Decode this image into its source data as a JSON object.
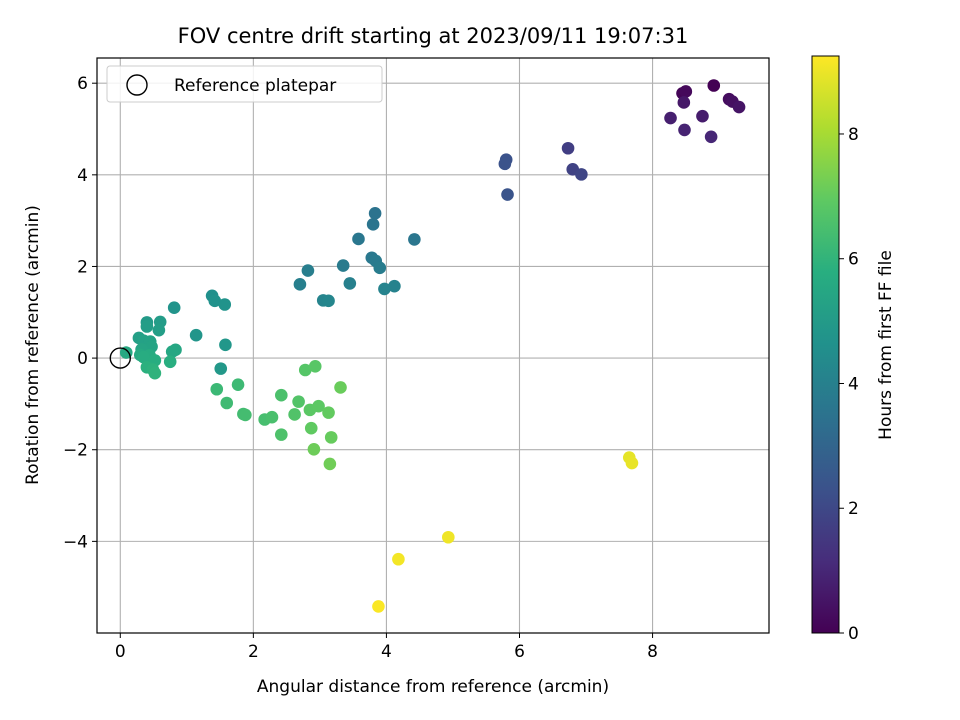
{
  "chart_data": {
    "type": "scatter",
    "title": "FOV centre drift starting at 2023/09/11 19:07:31",
    "xlabel": "Angular distance from reference (arcmin)",
    "ylabel": "Rotation from reference (arcmin)",
    "xlim": [
      -0.35,
      9.75
    ],
    "ylim": [
      -6.0,
      6.55
    ],
    "xticks": [
      "0",
      "2",
      "4",
      "6",
      "8"
    ],
    "yticks": [
      "−4",
      "−2",
      "0",
      "2",
      "4",
      "6"
    ],
    "grid": true,
    "legend": {
      "placement": "top-left",
      "entries": [
        "Reference platepar"
      ]
    },
    "reference": {
      "x": 0.0,
      "y": 0.0
    },
    "colorbar": {
      "label": "Hours from first FF file",
      "range": [
        0,
        9.25
      ],
      "ticks": [
        "0",
        "2",
        "4",
        "6",
        "8"
      ],
      "colormap": "viridis"
    },
    "points": [
      {
        "x": 8.92,
        "y": 5.95,
        "h": 0.0
      },
      {
        "x": 8.45,
        "y": 5.78,
        "h": 0.1
      },
      {
        "x": 8.5,
        "y": 5.82,
        "h": 0.2
      },
      {
        "x": 9.15,
        "y": 5.65,
        "h": 0.3
      },
      {
        "x": 9.2,
        "y": 5.6,
        "h": 0.4
      },
      {
        "x": 9.3,
        "y": 5.48,
        "h": 0.5
      },
      {
        "x": 8.47,
        "y": 5.58,
        "h": 0.6
      },
      {
        "x": 8.75,
        "y": 5.28,
        "h": 0.7
      },
      {
        "x": 8.27,
        "y": 5.24,
        "h": 0.8
      },
      {
        "x": 8.48,
        "y": 4.98,
        "h": 0.9
      },
      {
        "x": 8.88,
        "y": 4.83,
        "h": 1.0
      },
      {
        "x": 6.73,
        "y": 4.58,
        "h": 1.7
      },
      {
        "x": 6.8,
        "y": 4.12,
        "h": 1.8
      },
      {
        "x": 6.93,
        "y": 4.01,
        "h": 1.9
      },
      {
        "x": 5.8,
        "y": 4.33,
        "h": 2.3
      },
      {
        "x": 5.78,
        "y": 4.24,
        "h": 2.35
      },
      {
        "x": 5.82,
        "y": 3.57,
        "h": 2.4
      },
      {
        "x": 3.83,
        "y": 3.16,
        "h": 3.5
      },
      {
        "x": 3.8,
        "y": 2.92,
        "h": 3.55
      },
      {
        "x": 4.42,
        "y": 2.59,
        "h": 3.6
      },
      {
        "x": 3.58,
        "y": 2.6,
        "h": 3.65
      },
      {
        "x": 3.78,
        "y": 2.19,
        "h": 3.7
      },
      {
        "x": 3.84,
        "y": 2.12,
        "h": 3.75
      },
      {
        "x": 3.35,
        "y": 2.02,
        "h": 3.8
      },
      {
        "x": 3.9,
        "y": 1.97,
        "h": 3.85
      },
      {
        "x": 2.82,
        "y": 1.91,
        "h": 3.9
      },
      {
        "x": 2.7,
        "y": 1.61,
        "h": 3.95
      },
      {
        "x": 3.45,
        "y": 1.63,
        "h": 4.0
      },
      {
        "x": 4.12,
        "y": 1.57,
        "h": 4.05
      },
      {
        "x": 3.97,
        "y": 1.51,
        "h": 4.1
      },
      {
        "x": 3.05,
        "y": 1.26,
        "h": 4.15
      },
      {
        "x": 3.13,
        "y": 1.25,
        "h": 4.2
      },
      {
        "x": 1.38,
        "y": 1.36,
        "h": 4.6
      },
      {
        "x": 1.42,
        "y": 1.25,
        "h": 4.65
      },
      {
        "x": 1.57,
        "y": 1.17,
        "h": 4.7
      },
      {
        "x": 0.81,
        "y": 1.1,
        "h": 4.75
      },
      {
        "x": 1.14,
        "y": 0.5,
        "h": 4.8
      },
      {
        "x": 1.58,
        "y": 0.29,
        "h": 4.85
      },
      {
        "x": 1.51,
        "y": -0.23,
        "h": 4.9
      },
      {
        "x": 0.4,
        "y": 0.78,
        "h": 5.0
      },
      {
        "x": 0.6,
        "y": 0.79,
        "h": 5.05
      },
      {
        "x": 0.4,
        "y": 0.69,
        "h": 5.1
      },
      {
        "x": 0.58,
        "y": 0.61,
        "h": 5.15
      },
      {
        "x": 0.28,
        "y": 0.44,
        "h": 5.2
      },
      {
        "x": 0.35,
        "y": 0.38,
        "h": 5.25
      },
      {
        "x": 0.45,
        "y": 0.36,
        "h": 5.3
      },
      {
        "x": 0.47,
        "y": 0.25,
        "h": 5.35
      },
      {
        "x": 0.32,
        "y": 0.19,
        "h": 5.4
      },
      {
        "x": 0.83,
        "y": 0.18,
        "h": 5.45
      },
      {
        "x": 0.78,
        "y": 0.14,
        "h": 5.5
      },
      {
        "x": 0.09,
        "y": 0.12,
        "h": 5.55
      },
      {
        "x": 0.3,
        "y": 0.07,
        "h": 5.6
      },
      {
        "x": 0.44,
        "y": 0.06,
        "h": 5.65
      },
      {
        "x": 0.35,
        "y": 0.02,
        "h": 5.7
      },
      {
        "x": 0.52,
        "y": -0.05,
        "h": 5.75
      },
      {
        "x": 0.75,
        "y": -0.08,
        "h": 5.8
      },
      {
        "x": 0.4,
        "y": -0.2,
        "h": 5.85
      },
      {
        "x": 0.49,
        "y": -0.25,
        "h": 5.9
      },
      {
        "x": 0.52,
        "y": -0.33,
        "h": 5.95
      },
      {
        "x": 1.45,
        "y": -0.68,
        "h": 6.2
      },
      {
        "x": 1.77,
        "y": -0.58,
        "h": 6.25
      },
      {
        "x": 1.6,
        "y": -0.98,
        "h": 6.3
      },
      {
        "x": 1.85,
        "y": -1.22,
        "h": 6.35
      },
      {
        "x": 1.88,
        "y": -1.24,
        "h": 6.4
      },
      {
        "x": 2.17,
        "y": -1.34,
        "h": 6.45
      },
      {
        "x": 2.28,
        "y": -1.29,
        "h": 6.5
      },
      {
        "x": 2.42,
        "y": -0.81,
        "h": 6.55
      },
      {
        "x": 2.42,
        "y": -1.67,
        "h": 6.6
      },
      {
        "x": 2.62,
        "y": -1.23,
        "h": 6.65
      },
      {
        "x": 2.68,
        "y": -0.95,
        "h": 6.7
      },
      {
        "x": 2.78,
        "y": -0.26,
        "h": 6.75
      },
      {
        "x": 2.93,
        "y": -0.18,
        "h": 6.8
      },
      {
        "x": 2.85,
        "y": -1.13,
        "h": 6.85
      },
      {
        "x": 2.98,
        "y": -1.05,
        "h": 6.9
      },
      {
        "x": 2.87,
        "y": -1.53,
        "h": 6.95
      },
      {
        "x": 3.13,
        "y": -1.19,
        "h": 7.0
      },
      {
        "x": 3.17,
        "y": -1.73,
        "h": 7.05
      },
      {
        "x": 3.31,
        "y": -0.64,
        "h": 7.1
      },
      {
        "x": 2.91,
        "y": -1.99,
        "h": 7.15
      },
      {
        "x": 3.15,
        "y": -2.31,
        "h": 7.2
      },
      {
        "x": 7.65,
        "y": -2.17,
        "h": 8.9
      },
      {
        "x": 7.69,
        "y": -2.29,
        "h": 8.95
      },
      {
        "x": 4.93,
        "y": -3.91,
        "h": 9.05
      },
      {
        "x": 4.18,
        "y": -4.39,
        "h": 9.1
      },
      {
        "x": 3.88,
        "y": -5.42,
        "h": 9.2
      }
    ]
  }
}
